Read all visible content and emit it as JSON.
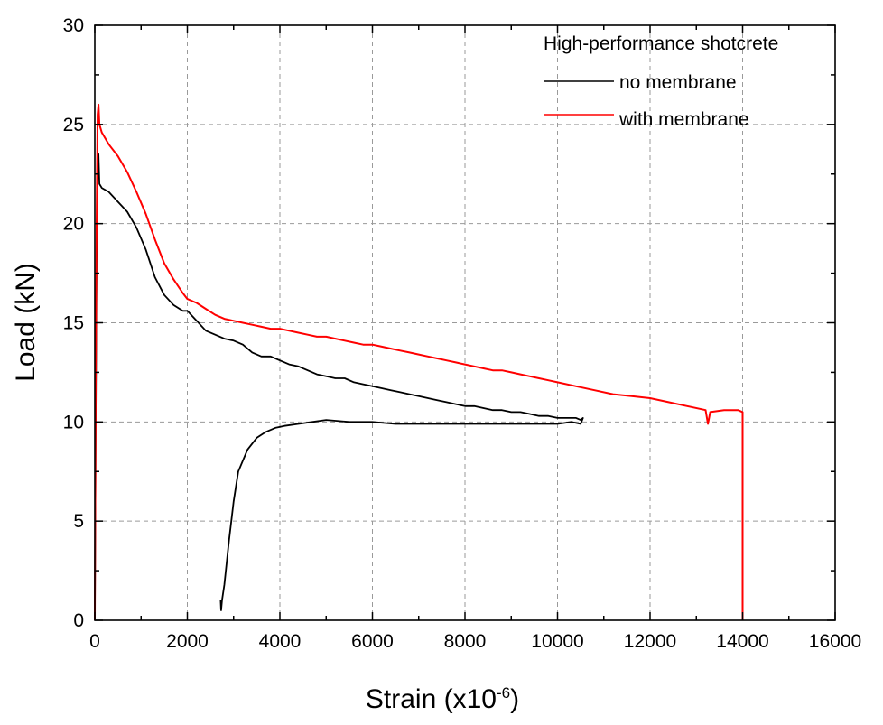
{
  "chart_data": {
    "type": "line",
    "title": "",
    "xlabel": "Strain (x10",
    "xlabel_exponent": "-6",
    "xlabel_close": ")",
    "ylabel": "Load (kN)",
    "xlim": [
      0,
      16000
    ],
    "ylim": [
      0,
      30
    ],
    "xticks": [
      0,
      2000,
      4000,
      6000,
      8000,
      10000,
      12000,
      14000,
      16000
    ],
    "yticks": [
      0,
      5,
      10,
      15,
      20,
      25,
      30
    ],
    "grid": true,
    "legend": {
      "title": "High-performance shotcrete",
      "position": "top-right"
    },
    "series": [
      {
        "name": "no membrane",
        "color": "#000000",
        "x": [
          0,
          20,
          40,
          60,
          80,
          100,
          150,
          300,
          500,
          700,
          900,
          1100,
          1300,
          1500,
          1700,
          1900,
          2000,
          2200,
          2400,
          2600,
          2800,
          3000,
          3200,
          3400,
          3600,
          3800,
          4000,
          4200,
          4400,
          4600,
          4800,
          5000,
          5200,
          5400,
          5600,
          5800,
          6000,
          6200,
          6400,
          6600,
          6800,
          7000,
          7200,
          7400,
          7600,
          7800,
          8000,
          8200,
          8400,
          8600,
          8800,
          9000,
          9200,
          9400,
          9600,
          9800,
          10000,
          10200,
          10400,
          10500,
          10550,
          10500,
          10300,
          10000,
          9500,
          9000,
          8500,
          8000,
          7500,
          7000,
          6500,
          6000,
          5500,
          5000,
          4700,
          4400,
          4100,
          3900,
          3700,
          3500,
          3300,
          3100,
          3000,
          2900,
          2800,
          2750,
          2730,
          2720
        ],
        "values": [
          0,
          10,
          18,
          23,
          23.5,
          22,
          21.8,
          21.6,
          21.1,
          20.6,
          19.8,
          18.7,
          17.3,
          16.4,
          15.9,
          15.6,
          15.6,
          15.1,
          14.6,
          14.4,
          14.2,
          14.1,
          13.9,
          13.5,
          13.3,
          13.3,
          13.1,
          12.9,
          12.8,
          12.6,
          12.4,
          12.3,
          12.2,
          12.2,
          12.0,
          11.9,
          11.8,
          11.7,
          11.6,
          11.5,
          11.4,
          11.3,
          11.2,
          11.1,
          11.0,
          10.9,
          10.8,
          10.8,
          10.7,
          10.6,
          10.6,
          10.5,
          10.5,
          10.4,
          10.3,
          10.3,
          10.2,
          10.2,
          10.2,
          10.1,
          10.2,
          9.9,
          10.0,
          9.9,
          9.9,
          9.9,
          9.9,
          9.9,
          9.9,
          9.9,
          9.9,
          10.0,
          10.0,
          10.1,
          10.0,
          9.9,
          9.8,
          9.7,
          9.5,
          9.2,
          8.6,
          7.5,
          6.0,
          4.0,
          1.8,
          1.0,
          0.5,
          1.0
        ]
      },
      {
        "name": "with membrane",
        "color": "#ff0000",
        "x": [
          0,
          20,
          40,
          60,
          80,
          100,
          150,
          300,
          500,
          700,
          900,
          1100,
          1300,
          1500,
          1700,
          1900,
          2000,
          2200,
          2400,
          2600,
          2800,
          3000,
          3200,
          3400,
          3600,
          3800,
          4000,
          4200,
          4400,
          4600,
          4800,
          5000,
          5200,
          5400,
          5600,
          5800,
          6000,
          6200,
          6400,
          6600,
          6800,
          7000,
          7200,
          7400,
          7600,
          7800,
          8000,
          8200,
          8400,
          8600,
          8800,
          9000,
          9200,
          9400,
          9600,
          9800,
          10000,
          10400,
          10800,
          11200,
          11600,
          12000,
          12400,
          12800,
          13200,
          13250,
          13300,
          13600,
          13900,
          14000,
          14000,
          14000
        ],
        "values": [
          0,
          12,
          20,
          25.5,
          26.0,
          25.0,
          24.6,
          24.0,
          23.4,
          22.6,
          21.6,
          20.5,
          19.2,
          18.0,
          17.2,
          16.5,
          16.2,
          16.0,
          15.7,
          15.4,
          15.2,
          15.1,
          15.0,
          14.9,
          14.8,
          14.7,
          14.7,
          14.6,
          14.5,
          14.4,
          14.3,
          14.3,
          14.2,
          14.1,
          14.0,
          13.9,
          13.9,
          13.8,
          13.7,
          13.6,
          13.5,
          13.4,
          13.3,
          13.2,
          13.1,
          13.0,
          12.9,
          12.8,
          12.7,
          12.6,
          12.6,
          12.5,
          12.4,
          12.3,
          12.2,
          12.1,
          12.0,
          11.8,
          11.6,
          11.4,
          11.3,
          11.2,
          11.0,
          10.8,
          10.6,
          9.9,
          10.5,
          10.6,
          10.6,
          10.5,
          5.0,
          0.0
        ]
      }
    ]
  }
}
